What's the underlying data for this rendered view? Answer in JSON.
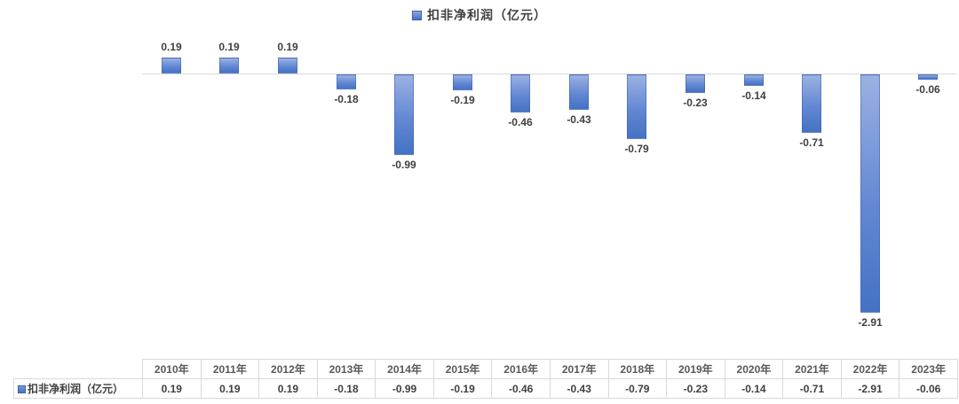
{
  "chart_data": {
    "type": "bar",
    "title": "",
    "series_label": "扣非净利润（亿元）",
    "categories": [
      "2010年",
      "2011年",
      "2012年",
      "2013年",
      "2014年",
      "2015年",
      "2016年",
      "2017年",
      "2018年",
      "2019年",
      "2020年",
      "2021年",
      "2022年",
      "2023年"
    ],
    "values": [
      0.19,
      0.19,
      0.19,
      -0.18,
      -0.99,
      -0.19,
      -0.46,
      -0.43,
      -0.79,
      -0.23,
      -0.14,
      -0.71,
      -2.91,
      -0.06
    ],
    "value_format": "0.00",
    "xlabel": "",
    "ylabel": "",
    "ylim": [
      -3.1,
      0.4
    ],
    "grid": false,
    "axis_line_shown": true,
    "legend_position": "top-center",
    "data_labels_shown": true,
    "colors": {
      "bar_gradient_top": "#9bb1e2",
      "bar_gradient_bottom": "#4472c4",
      "bar_border": "#3e62ad",
      "axis_line": "#d9d9d9",
      "data_label_text": "#3f3f3f",
      "legend_text": "#404040"
    }
  },
  "table": {
    "row_label": "扣非净利润（亿元）",
    "columns": [
      "2010年",
      "2011年",
      "2012年",
      "2013年",
      "2014年",
      "2015年",
      "2016年",
      "2017年",
      "2018年",
      "2019年",
      "2020年",
      "2021年",
      "2022年",
      "2023年"
    ],
    "values": [
      "0.19",
      "0.19",
      "0.19",
      "-0.18",
      "-0.99",
      "-0.19",
      "-0.46",
      "-0.43",
      "-0.79",
      "-0.23",
      "-0.14",
      "-0.71",
      "-2.91",
      "-0.06"
    ]
  }
}
